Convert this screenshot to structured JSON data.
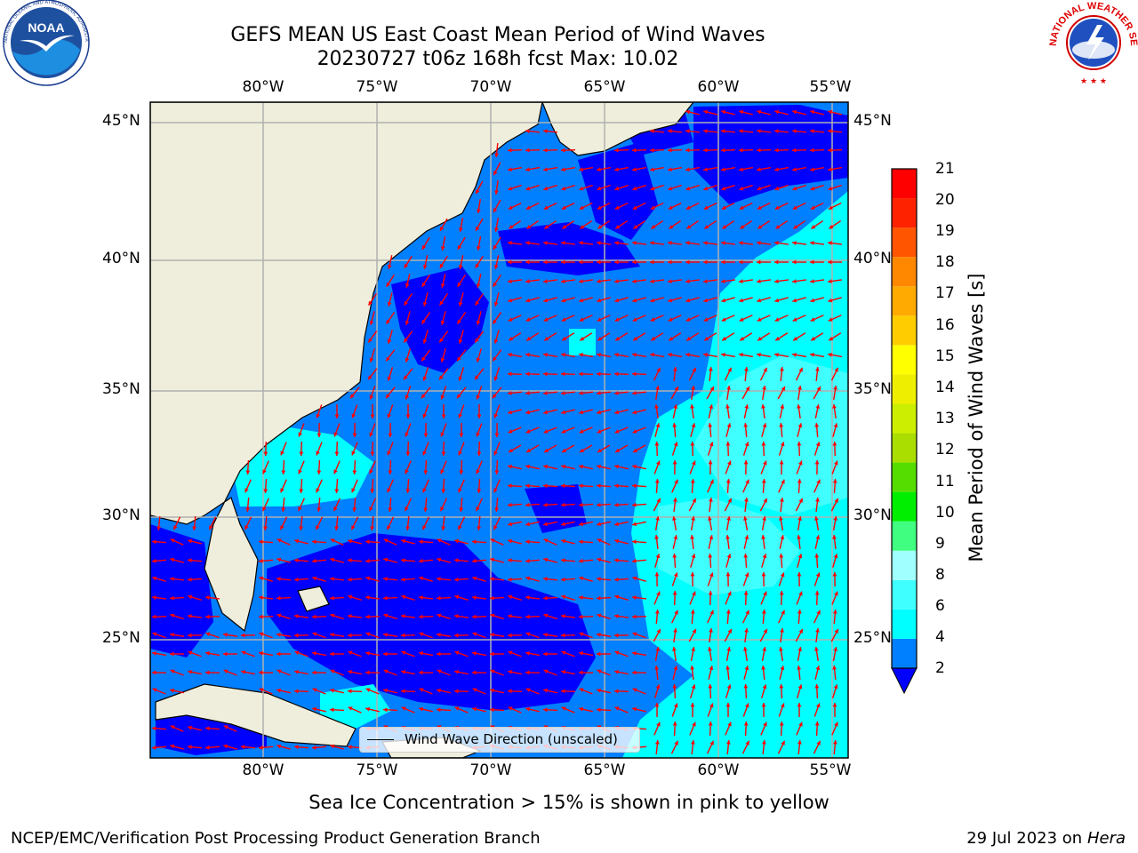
{
  "title": {
    "line1": "GEFS MEAN US East Coast Mean Period of Wind Waves",
    "line2": "20230727 t06z 168h fcst   Max: 10.02"
  },
  "map": {
    "lon_labels": [
      "80°W",
      "75°W",
      "70°W",
      "65°W",
      "60°W",
      "55°W"
    ],
    "lat_labels": [
      "45°N",
      "40°N",
      "35°N",
      "30°N",
      "25°N"
    ],
    "land_color": "#efeedc",
    "arrow_color": "#ff0000",
    "grid_color": "#b0b0b0"
  },
  "legend": {
    "label": "Wind Wave Direction (unscaled)"
  },
  "colorbar": {
    "label": "Mean Period of Wind Waves [s]",
    "ticks": [
      "2",
      "4",
      "6",
      "8",
      "9",
      "10",
      "11",
      "12",
      "13",
      "14",
      "15",
      "16",
      "17",
      "18",
      "19",
      "20",
      "21"
    ],
    "colors": [
      "#0080ff",
      "#00ffff",
      "#40ffff",
      "#a0ffff",
      "#40ff80",
      "#00ee00",
      "#55dd00",
      "#aadd00",
      "#ccee00",
      "#eeee00",
      "#ffff00",
      "#ffcc00",
      "#ffaa00",
      "#ff8800",
      "#ff5500",
      "#ff2200",
      "#ff0000"
    ],
    "extend_color": "#0000ff"
  },
  "note": "Sea Ice Concentration > 15% is shown in pink to yellow",
  "footer": {
    "left": "NCEP/EMC/Verification Post Processing Product Generation Branch",
    "right_date": "29 Jul 2023 on ",
    "right_host": "Hera"
  },
  "logos": {
    "noaa": "NOAA",
    "noaa_ring": "NATIONAL OCEANIC AND ATMOSPHERIC ADMINISTRATION · U.S. DEPARTMENT OF COMMERCE",
    "nws_ring": "NATIONAL WEATHER SERVICE"
  }
}
